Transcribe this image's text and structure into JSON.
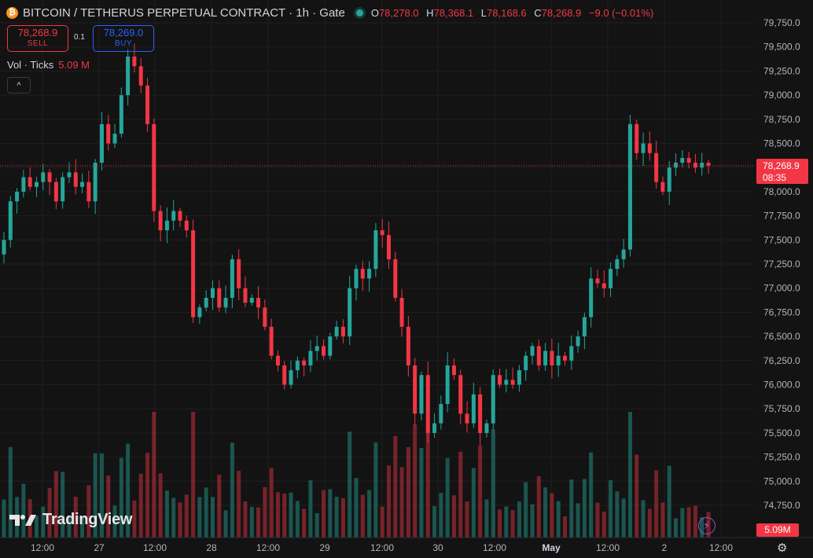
{
  "header": {
    "coin_icon_glyph": "₿",
    "title": "BITCOIN / TETHERUS PERPETUAL CONTRACT · 1h · Gate",
    "ohlc": {
      "o_label": "O",
      "o": "78,278.0",
      "h_label": "H",
      "h": "78,368.1",
      "l_label": "L",
      "l": "78,168.6",
      "c_label": "C",
      "c": "78,268.9",
      "change": "−9.0 (−0.01%)"
    }
  },
  "trade": {
    "sell_price": "78,268.9",
    "sell_label": "SELL",
    "spread": "0.1",
    "buy_price": "78,269.0",
    "buy_label": "BUY"
  },
  "volume_legend": {
    "label": "Vol · Ticks",
    "value": "5.09 M"
  },
  "collapse_glyph": "^",
  "logo": {
    "text": "TradingView"
  },
  "last_price": {
    "price": "78,268.9",
    "countdown": "08:35"
  },
  "volume_badge": "5.09M",
  "colors": {
    "up": "#26a69a",
    "down": "#f23645",
    "background": "#131313",
    "grid": "#1f1f1f"
  },
  "chart_data": {
    "type": "candlestick",
    "y_axis": {
      "min": 74500,
      "max": 79750,
      "step": 250,
      "ticks": [
        "79,750.0",
        "79,500.0",
        "79,250.0",
        "79,000.0",
        "78,750.0",
        "78,500.0",
        "78,250.0",
        "78,000.0",
        "77,750.0",
        "77,500.0",
        "77,250.0",
        "77,000.0",
        "76,750.0",
        "76,500.0",
        "76,250.0",
        "76,000.0",
        "75,750.0",
        "75,500.0",
        "75,250.0",
        "75,000.0",
        "74,750.0"
      ]
    },
    "x_axis": {
      "labels": [
        "12:00",
        "27",
        "12:00",
        "28",
        "12:00",
        "29",
        "12:00",
        "30",
        "12:00",
        "May",
        "12:00",
        "2",
        "12:00"
      ]
    },
    "last_price": 78268.9,
    "candles_close": [
      77500,
      77900,
      78000,
      78150,
      78050,
      78100,
      78200,
      78100,
      77900,
      78150,
      78200,
      78050,
      78100,
      77900,
      78300,
      78700,
      78500,
      78600,
      79000,
      79400,
      79300,
      79100,
      78700,
      77800,
      77600,
      77700,
      77800,
      77700,
      77600,
      76700,
      76800,
      76900,
      77000,
      76800,
      76900,
      77300,
      77000,
      76850,
      76900,
      76800,
      76600,
      76300,
      76200,
      76000,
      76150,
      76250,
      76200,
      76350,
      76400,
      76300,
      76500,
      76600,
      76500,
      77000,
      77200,
      77100,
      77200,
      77600,
      77550,
      77300,
      76900,
      76600,
      76200,
      75700,
      76100,
      75500,
      75600,
      75800,
      76200,
      76100,
      75700,
      75600,
      75900,
      75500,
      75600,
      76100,
      76000,
      76050,
      76000,
      76150,
      76300,
      76400,
      76200,
      76350,
      76200,
      76300,
      76250,
      76400,
      76500,
      76700,
      77100,
      77050,
      77000,
      77200,
      77300,
      77400,
      78700,
      78400,
      78500,
      78400,
      78100,
      78000,
      78250,
      78300,
      78350,
      78300,
      78250,
      78300,
      78268.9
    ],
    "volume": {
      "unit": "M",
      "last_value": 5.09
    }
  }
}
